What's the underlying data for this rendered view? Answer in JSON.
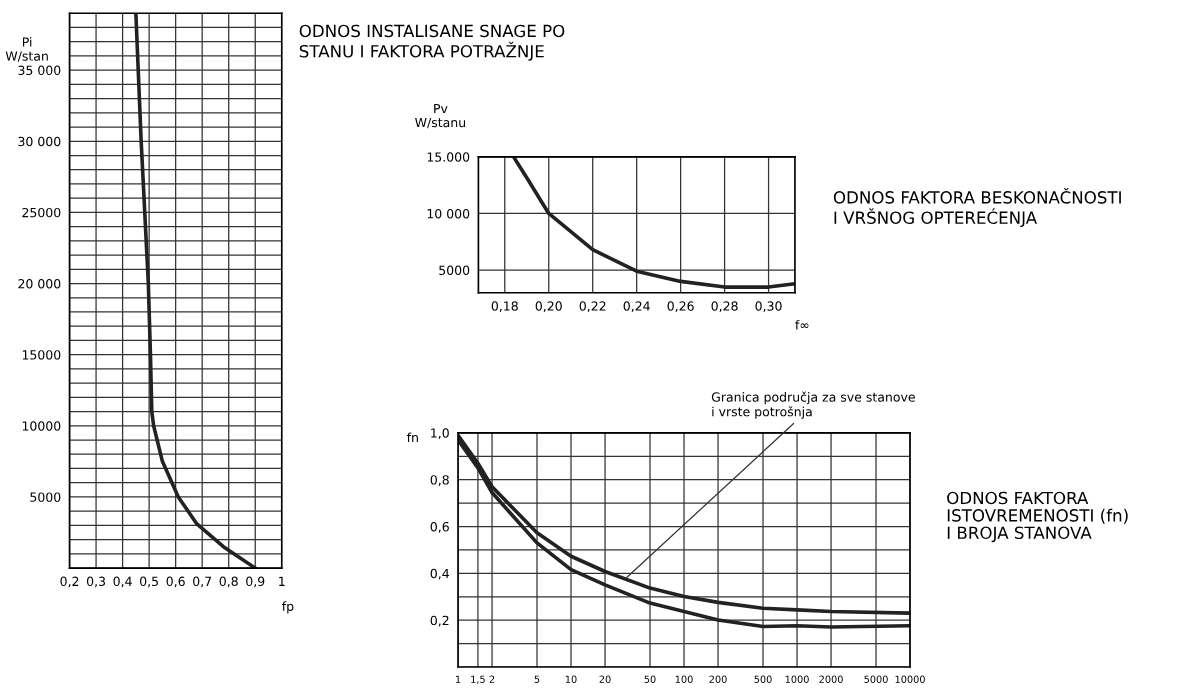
{
  "chart_data": [
    {
      "type": "line",
      "annotations": [
        "ODNOS INSTALISANE SNAGE PO\nSTANU I FAKTORA POTRAŽNJE"
      ],
      "xlabel": "fp",
      "ylabel": "Pi\nW/stan",
      "x": [
        0.45,
        0.47,
        0.497,
        0.505,
        0.51,
        0.517,
        0.55,
        0.61,
        0.68,
        0.78,
        0.9
      ],
      "series": [
        {
          "color": "#222222",
          "values": [
            39000,
            30000,
            20000,
            15000,
            11000,
            10000,
            7500,
            5000,
            3100,
            1500,
            0
          ]
        }
      ],
      "xlim": [
        0.2,
        1.0
      ],
      "ylim": [
        0,
        39000
      ],
      "xticks": [
        {
          "value": 0.2,
          "label": "0,2"
        },
        {
          "value": 0.3,
          "label": "0,3"
        },
        {
          "value": 0.4,
          "label": "0,4"
        },
        {
          "value": 0.5,
          "label": "0,5"
        },
        {
          "value": 0.6,
          "label": "0,6"
        },
        {
          "value": 0.7,
          "label": "0,7"
        },
        {
          "value": 0.8,
          "label": "0,8"
        },
        {
          "value": 0.9,
          "label": "0,9"
        },
        1
      ],
      "yticks": [
        {
          "value": 0,
          "label": null
        },
        {
          "value": 1000,
          "label": null
        },
        {
          "value": 2000,
          "label": null
        },
        {
          "value": 3000,
          "label": null
        },
        {
          "value": 4000,
          "label": null
        },
        5000,
        {
          "value": 6000,
          "label": null
        },
        {
          "value": 7000,
          "label": null
        },
        {
          "value": 8000,
          "label": null
        },
        {
          "value": 9000,
          "label": null
        },
        10000,
        {
          "value": 11000,
          "label": null
        },
        {
          "value": 12000,
          "label": null
        },
        {
          "value": 13000,
          "label": null
        },
        {
          "value": 14000,
          "label": null
        },
        15000,
        {
          "value": 16000,
          "label": null
        },
        {
          "value": 17000,
          "label": null
        },
        {
          "value": 18000,
          "label": null
        },
        {
          "value": 19000,
          "label": null
        },
        {
          "value": 20000,
          "label": "20 000"
        },
        {
          "value": 21000,
          "label": null
        },
        {
          "value": 22000,
          "label": null
        },
        {
          "value": 23000,
          "label": null
        },
        {
          "value": 24000,
          "label": null
        },
        25000,
        {
          "value": 26000,
          "label": null
        },
        {
          "value": 27000,
          "label": null
        },
        {
          "value": 28000,
          "label": null
        },
        {
          "value": 29000,
          "label": null
        },
        {
          "value": 30000,
          "label": "30 000"
        },
        {
          "value": 31000,
          "label": null
        },
        {
          "value": 32000,
          "label": null
        },
        {
          "value": 33000,
          "label": null
        },
        {
          "value": 34000,
          "label": null
        },
        {
          "value": 35000,
          "label": "35 000"
        },
        {
          "value": 36000,
          "label": null
        },
        {
          "value": 37000,
          "label": null
        },
        {
          "value": 38000,
          "label": null
        }
      ],
      "grid": true,
      "line_style": "solid",
      "marker": "none"
    },
    {
      "type": "line",
      "annotations": [
        "ODNOS FAKTORA BESKONAČNOSTI\nI VRŠNOG OPTEREĆENJA"
      ],
      "xlabel": "f∞",
      "ylabel": "Pv\nW/stanu",
      "x": [
        0.184,
        0.1905,
        0.2,
        0.22,
        0.24,
        0.26,
        0.28,
        0.3,
        0.312
      ],
      "series": [
        {
          "color": "#222222",
          "values": [
            15000,
            13000,
            10000,
            6800,
            4900,
            4000,
            3500,
            3500,
            3800
          ]
        }
      ],
      "xlim": [
        0.168,
        0.312
      ],
      "ylim": [
        3000,
        15000
      ],
      "xticks": [
        {
          "value": 0.18,
          "label": "0,18"
        },
        {
          "value": 0.2,
          "label": "0,20"
        },
        {
          "value": 0.22,
          "label": "0,22"
        },
        {
          "value": 0.24,
          "label": "0,24"
        },
        {
          "value": 0.26,
          "label": "0,26"
        },
        {
          "value": 0.28,
          "label": "0,28"
        },
        {
          "value": 0.3,
          "label": "0,30"
        }
      ],
      "yticks": [
        5000,
        {
          "value": 10000,
          "label": "10 000"
        },
        {
          "value": 15000,
          "label": "15.000"
        }
      ],
      "grid": true,
      "line_style": "solid",
      "marker": "none"
    },
    {
      "type": "line",
      "ylabel": "fn",
      "log": "x",
      "x": [
        1,
        1.5,
        2,
        5,
        10,
        20,
        50,
        100,
        200,
        500,
        1000,
        2000,
        10000
      ],
      "series": [
        {
          "color": "#222222",
          "values": [
            0.99,
            0.87,
            0.77,
            0.573,
            0.473,
            0.408,
            0.337,
            0.301,
            0.276,
            0.251,
            0.244,
            0.237,
            0.23
          ]
        },
        {
          "color": "#222222",
          "values": [
            0.97,
            0.85,
            0.745,
            0.53,
            0.416,
            0.351,
            0.273,
            0.237,
            0.201,
            0.173,
            0.176,
            0.171,
            0.176
          ]
        }
      ],
      "xlim": [
        1,
        10000
      ],
      "ylim": [
        0,
        1.0
      ],
      "xticks": [
        1,
        {
          "value": 1.5,
          "label": "1,5"
        },
        2,
        5,
        10,
        20,
        50,
        100,
        200,
        500,
        1000,
        2000,
        5000,
        10000
      ],
      "yticks": [
        {
          "value": 0,
          "label": null
        },
        {
          "value": 0.1,
          "label": null
        },
        {
          "value": 0.2,
          "label": "0,2"
        },
        {
          "value": 0.3,
          "label": null
        },
        {
          "value": 0.4,
          "label": "0,4"
        },
        {
          "value": 0.5,
          "label": null
        },
        {
          "value": 0.6,
          "label": "0,6"
        },
        {
          "value": 0.7,
          "label": null
        },
        {
          "value": 0.8,
          "label": "0,8"
        },
        {
          "value": 0.9,
          "label": null
        },
        {
          "value": 1.0,
          "label": "1,0"
        }
      ],
      "annotations": [
        "ODNOS FAKTORA\nISTOVREMENOSTI (fn)\nI BROJA STANOVA",
        {
          "text": "Granica područja za sve stanove\ni vrste potrošnja",
          "x": 30,
          "y": 0.375
        }
      ],
      "grid": true,
      "line_style": "solid",
      "marker": "none"
    }
  ]
}
